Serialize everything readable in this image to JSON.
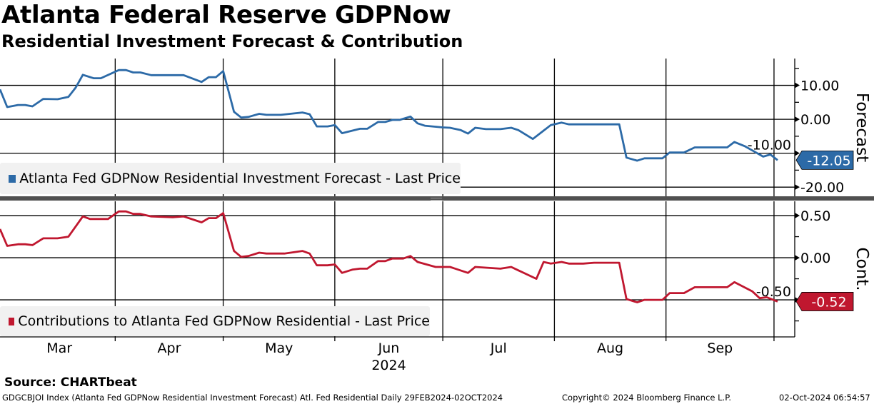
{
  "header": {
    "title": "Atlanta Federal Reserve GDPNow",
    "subtitle": "Residential Investment Forecast & Contribution"
  },
  "footer": {
    "source": "Source: CHARTbeat",
    "index_info": "GDGCBJOI Index (Atlanta Fed GDPNow Residential Investment Forecast) Atl. Fed Residential  Daily 29FEB2024-02OCT2024",
    "copyright": "Copyright© 2024 Bloomberg Finance L.P.",
    "timestamp": "02-Oct-2024 06:54:57"
  },
  "chart_data": [
    {
      "type": "line",
      "title": "Atlanta Fed GDPNow Residential Investment Forecast",
      "ylabel": "Forecast",
      "x_unit": "days since 29FEB2024",
      "xlim": [
        0,
        216
      ],
      "ylim": [
        -22.7,
        17.9
      ],
      "yticks": [
        10,
        0,
        -10,
        -20
      ],
      "yminor": [
        15,
        5,
        -5,
        -15
      ],
      "grid": true,
      "legend": {
        "label": "Atlanta Fed GDPNow Residential Investment Forecast - Last Price",
        "placement": "bottom-left"
      },
      "last_value_label": "-12.05",
      "color": "#2c6aa7",
      "series": [
        {
          "name": "Atlanta Fed GDPNow Residential Investment Forecast",
          "x": [
            0,
            2,
            5,
            7,
            9,
            12,
            16,
            19,
            21,
            23,
            26,
            28,
            33,
            35,
            37,
            39,
            42,
            51,
            56,
            58,
            60,
            62,
            65,
            67,
            69,
            72,
            74,
            78,
            84,
            86,
            88,
            91,
            93,
            95,
            100,
            102,
            105,
            107,
            109,
            111,
            114,
            116,
            118,
            123,
            125,
            128,
            130,
            132,
            135,
            139,
            142,
            144,
            148,
            153,
            156,
            158,
            172,
            174,
            177,
            179,
            184,
            186,
            190,
            193,
            202,
            204,
            207,
            209,
            212,
            214,
            216
          ],
          "values": [
            8.8,
            3.6,
            4.2,
            4.2,
            3.8,
            6.0,
            5.9,
            6.6,
            9.3,
            13.1,
            12.1,
            12.1,
            14.5,
            14.5,
            13.8,
            13.8,
            13.0,
            13.0,
            11.0,
            12.4,
            12.4,
            14.2,
            2.2,
            0.5,
            0.7,
            1.6,
            1.3,
            1.3,
            2.0,
            1.5,
            -2.1,
            -2.1,
            -1.7,
            -4.1,
            -2.8,
            -2.8,
            -0.8,
            -0.8,
            -0.2,
            -0.2,
            0.8,
            -1.2,
            -1.9,
            -2.4,
            -2.5,
            -3.2,
            -4.2,
            -2.5,
            -2.9,
            -2.9,
            -2.5,
            -3.2,
            -5.8,
            -1.7,
            -1.0,
            -1.5,
            -1.5,
            -11.3,
            -12.2,
            -11.5,
            -11.5,
            -9.8,
            -9.8,
            -8.3,
            -8.3,
            -6.7,
            -8.0,
            -9.2,
            -11.0,
            -10.4,
            -12.05
          ]
        }
      ]
    },
    {
      "type": "line",
      "title": "Contributions to Atlanta Fed GDPNow Residential",
      "ylabel": "Cont.",
      "x_unit": "days since 29FEB2024",
      "xlim": [
        0,
        216
      ],
      "ylim": [
        -0.94,
        0.67
      ],
      "yticks": [
        0.5,
        0,
        -0.5
      ],
      "yminor": [
        0.25,
        -0.25,
        -0.75
      ],
      "grid": true,
      "legend": {
        "label": "Contributions to Atlanta Fed GDPNow Residential - Last Price",
        "placement": "bottom-left"
      },
      "last_value_label": "-0.52",
      "color": "#c0172f",
      "series": [
        {
          "name": "Contributions to Atlanta Fed GDPNow Residential",
          "x": [
            0,
            2,
            5,
            7,
            9,
            12,
            16,
            19,
            21,
            23,
            25,
            30,
            33,
            35,
            37,
            39,
            42,
            48,
            51,
            56,
            58,
            60,
            62,
            65,
            67,
            69,
            72,
            74,
            79,
            84,
            86,
            88,
            91,
            93,
            95,
            98,
            100,
            102,
            105,
            107,
            109,
            112,
            114,
            116,
            121,
            125,
            130,
            132,
            139,
            142,
            144,
            149,
            151,
            153,
            156,
            158,
            162,
            165,
            172,
            174,
            177,
            179,
            184,
            186,
            190,
            193,
            202,
            204,
            209,
            211,
            213,
            216
          ],
          "values": [
            0.34,
            0.14,
            0.16,
            0.16,
            0.15,
            0.23,
            0.23,
            0.25,
            0.37,
            0.49,
            0.46,
            0.46,
            0.55,
            0.55,
            0.52,
            0.52,
            0.49,
            0.48,
            0.49,
            0.42,
            0.47,
            0.47,
            0.53,
            0.08,
            0.01,
            0.02,
            0.06,
            0.05,
            0.05,
            0.08,
            0.05,
            -0.09,
            -0.09,
            -0.08,
            -0.18,
            -0.14,
            -0.13,
            -0.13,
            -0.04,
            -0.04,
            -0.01,
            -0.01,
            0.02,
            -0.05,
            -0.11,
            -0.11,
            -0.18,
            -0.11,
            -0.13,
            -0.11,
            -0.15,
            -0.25,
            -0.05,
            -0.07,
            -0.05,
            -0.07,
            -0.07,
            -0.06,
            -0.06,
            -0.49,
            -0.53,
            -0.5,
            -0.5,
            -0.42,
            -0.42,
            -0.35,
            -0.35,
            -0.29,
            -0.4,
            -0.48,
            -0.47,
            -0.52
          ]
        }
      ]
    }
  ],
  "x_axis": {
    "months": [
      {
        "label": "Mar",
        "start": 1,
        "end": 32
      },
      {
        "label": "Apr",
        "start": 32,
        "end": 62
      },
      {
        "label": "May",
        "start": 62,
        "end": 93
      },
      {
        "label": "Jun",
        "start": 93,
        "end": 123
      },
      {
        "label": "Jul",
        "start": 123,
        "end": 154
      },
      {
        "label": "Aug",
        "start": 154,
        "end": 185
      },
      {
        "label": "Sep",
        "start": 185,
        "end": 215
      }
    ],
    "month_boundaries": [
      32,
      62,
      93,
      123,
      154,
      185,
      215
    ],
    "year_label": "2024"
  }
}
